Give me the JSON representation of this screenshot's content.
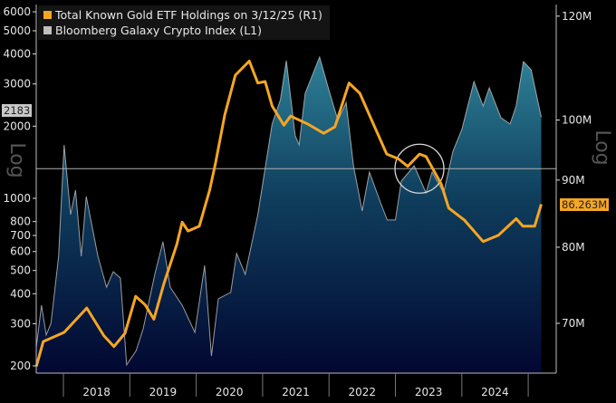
{
  "chart_data": {
    "type": "area+line",
    "legend": {
      "placement": "top-left",
      "entries": [
        {
          "label": "Total Known Gold ETF Holdings on 3/12/25 (R1)",
          "color": "#f5a623"
        },
        {
          "label": "Bloomberg Galaxy Crypto Index (L1)",
          "color": "#bfbfbf"
        }
      ]
    },
    "left_axis": {
      "scale": "log",
      "label": "Log",
      "ticks": [
        "6000",
        "5000",
        "4000",
        "3000",
        "2000",
        "1000",
        "800",
        "700",
        "600",
        "500",
        "400",
        "300",
        "200"
      ],
      "last_value_tag": "2183"
    },
    "right_axis": {
      "scale": "log",
      "label": "Log",
      "ticks": [
        "120M",
        "100M",
        "90M",
        "80M",
        "70M"
      ],
      "last_value_tag": "86.263M"
    },
    "x_axis": {
      "ticks": [
        "2018",
        "2019",
        "2020",
        "2021",
        "2022",
        "2023",
        "2024"
      ]
    },
    "reference_line_left_value": 1330,
    "series": [
      {
        "name": "Bloomberg Galaxy Crypto Index (L1)",
        "axis": "left",
        "style": "area",
        "color": "#bfbfbf",
        "points": [
          [
            "2017-08-04",
            240
          ],
          [
            "2017-09-02",
            358
          ],
          [
            "2017-09-28",
            269
          ],
          [
            "2017-10-24",
            301
          ],
          [
            "2017-12-05",
            573
          ],
          [
            "2018-01-05",
            1671
          ],
          [
            "2018-02-10",
            855
          ],
          [
            "2018-03-07",
            1082
          ],
          [
            "2018-04-08",
            573
          ],
          [
            "2018-05-05",
            1018
          ],
          [
            "2018-07-08",
            573
          ],
          [
            "2018-08-25",
            426
          ],
          [
            "2018-10-01",
            494
          ],
          [
            "2018-11-10",
            465
          ],
          [
            "2018-12-14",
            202
          ],
          [
            "2019-02-06",
            232
          ],
          [
            "2019-03-14",
            286
          ],
          [
            "2019-05-17",
            482
          ],
          [
            "2019-07-01",
            659
          ],
          [
            "2019-08-10",
            426
          ],
          [
            "2019-10-15",
            358
          ],
          [
            "2019-12-24",
            276
          ],
          [
            "2020-02-17",
            525
          ],
          [
            "2020-03-24",
            220
          ],
          [
            "2020-05-01",
            381
          ],
          [
            "2020-07-08",
            405
          ],
          [
            "2020-08-10",
            589
          ],
          [
            "2020-09-27",
            482
          ],
          [
            "2020-12-05",
            855
          ],
          [
            "2021-01-25",
            1492
          ],
          [
            "2021-02-23",
            2042
          ],
          [
            "2021-04-08",
            2581
          ],
          [
            "2021-05-10",
            3752
          ],
          [
            "2021-06-28",
            1823
          ],
          [
            "2021-07-19",
            1671
          ],
          [
            "2021-08-22",
            2743
          ],
          [
            "2021-11-10",
            3884
          ],
          [
            "2022-01-01",
            2817
          ],
          [
            "2022-02-20",
            2113
          ],
          [
            "2022-04-04",
            2512
          ],
          [
            "2022-05-14",
            1368
          ],
          [
            "2022-07-01",
            886
          ],
          [
            "2022-08-10",
            1287
          ],
          [
            "2022-10-09",
            966
          ],
          [
            "2022-11-17",
            812
          ],
          [
            "2023-01-01",
            812
          ],
          [
            "2023-02-03",
            1180
          ],
          [
            "2023-04-13",
            1368
          ],
          [
            "2023-06-17",
            1054
          ],
          [
            "2023-07-20",
            1287
          ],
          [
            "2023-09-23",
            1054
          ],
          [
            "2023-11-13",
            1572
          ],
          [
            "2024-01-01",
            1936
          ],
          [
            "2024-03-07",
            3072
          ],
          [
            "2024-04-27",
            2428
          ],
          [
            "2024-05-30",
            2890
          ],
          [
            "2024-08-03",
            2168
          ],
          [
            "2024-09-23",
            2042
          ],
          [
            "2024-10-26",
            2428
          ],
          [
            "2024-12-05",
            3716
          ],
          [
            "2025-01-17",
            3439
          ],
          [
            "2025-03-12",
            2183
          ]
        ]
      },
      {
        "name": "Total Known Gold ETF Holdings on 3/12/25 (R1)",
        "axis": "right",
        "style": "line",
        "color": "#f5a623",
        "unit": "M",
        "points": [
          [
            "2017-08-04",
            64.9
          ],
          [
            "2017-09-12",
            67.8
          ],
          [
            "2018-01-05",
            68.9
          ],
          [
            "2018-05-08",
            71.9
          ],
          [
            "2018-08-10",
            68.5
          ],
          [
            "2018-10-05",
            67.2
          ],
          [
            "2018-12-05",
            68.8
          ],
          [
            "2019-02-03",
            73.4
          ],
          [
            "2019-03-25",
            72.3
          ],
          [
            "2019-05-12",
            70.5
          ],
          [
            "2019-07-05",
            75.0
          ],
          [
            "2019-09-16",
            80.4
          ],
          [
            "2019-10-15",
            83.6
          ],
          [
            "2019-11-17",
            82.3
          ],
          [
            "2020-01-18",
            83.0
          ],
          [
            "2020-03-14",
            88.4
          ],
          [
            "2020-04-16",
            92.7
          ],
          [
            "2020-06-06",
            100.9
          ],
          [
            "2020-08-03",
            108.2
          ],
          [
            "2020-10-19",
            110.9
          ],
          [
            "2020-12-05",
            106.7
          ],
          [
            "2021-01-15",
            107.0
          ],
          [
            "2021-02-23",
            102.5
          ],
          [
            "2021-04-27",
            99.1
          ],
          [
            "2021-06-03",
            100.7
          ],
          [
            "2021-09-06",
            99.3
          ],
          [
            "2021-12-02",
            97.7
          ],
          [
            "2022-02-03",
            98.8
          ],
          [
            "2022-04-20",
            106.7
          ],
          [
            "2022-06-18",
            104.8
          ],
          [
            "2022-08-22",
            100.0
          ],
          [
            "2022-11-14",
            94.2
          ],
          [
            "2023-01-18",
            93.4
          ],
          [
            "2023-03-08",
            92.2
          ],
          [
            "2023-05-12",
            94.2
          ],
          [
            "2023-06-17",
            93.8
          ],
          [
            "2023-09-09",
            89.4
          ],
          [
            "2023-10-20",
            85.7
          ],
          [
            "2024-01-15",
            83.9
          ],
          [
            "2024-04-27",
            80.8
          ],
          [
            "2024-07-20",
            81.7
          ],
          [
            "2024-10-26",
            84.1
          ],
          [
            "2024-12-02",
            83.0
          ],
          [
            "2025-02-06",
            83.0
          ],
          [
            "2025-03-12",
            86.263
          ]
        ]
      }
    ]
  }
}
